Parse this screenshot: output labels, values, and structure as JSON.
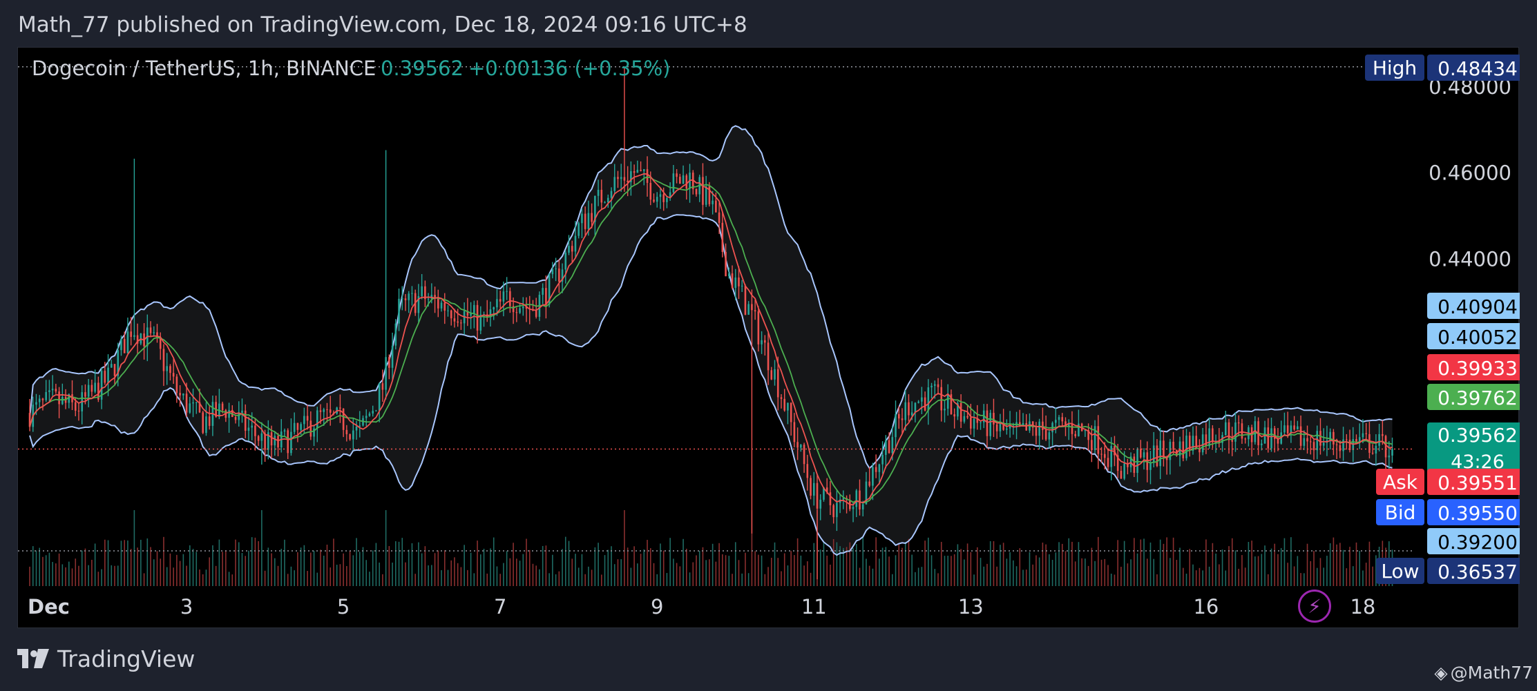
{
  "header": {
    "publish_text": "Math_77 published on TradingView.com, Dec 18, 2024 09:16 UTC+8"
  },
  "footer": {
    "brand_name": "TradingView",
    "handle": "@Math77"
  },
  "legend": {
    "symbol": "Dogecoin / TetherUS, 1h, BINANCE",
    "last": "0.39562",
    "change": "+0.00136 (+0.35%)"
  },
  "colors": {
    "up": "#26a69a",
    "down": "#ef5350",
    "bollinger": "#a9c7ff",
    "ma_fast": "#ef5350",
    "ma_slow": "#4caf50",
    "accent": "#2962ff"
  },
  "price_labels": [
    {
      "id": "high",
      "tag": "High",
      "value": "0.48434",
      "tag_bg": "#1c3478",
      "bg": "#1c3478",
      "fg": "#ffffff"
    },
    {
      "id": "bb_upper",
      "tag": "",
      "value": "0.40904",
      "bg": "#90caf9",
      "fg": "#000000"
    },
    {
      "id": "bb_mid",
      "tag": "",
      "value": "0.40052",
      "bg": "#90caf9",
      "fg": "#000000"
    },
    {
      "id": "ma_red",
      "tag": "",
      "value": "0.39933",
      "bg": "#f23645",
      "fg": "#ffffff"
    },
    {
      "id": "ma_green",
      "tag": "",
      "value": "0.39762",
      "bg": "#4caf50",
      "fg": "#ffffff"
    },
    {
      "id": "last",
      "tag": "",
      "value": "0.39562",
      "sub": "43:26",
      "bg": "#089981",
      "fg": "#ffffff"
    },
    {
      "id": "ask",
      "tag": "Ask",
      "value": "0.39551",
      "tag_bg": "#f23645",
      "bg": "#f23645",
      "fg": "#ffffff"
    },
    {
      "id": "bid",
      "tag": "Bid",
      "value": "0.39550",
      "tag_bg": "#2962ff",
      "bg": "#2962ff",
      "fg": "#ffffff"
    },
    {
      "id": "bb_lower",
      "tag": "",
      "value": "0.39200",
      "bg": "#90caf9",
      "fg": "#000000"
    },
    {
      "id": "low",
      "tag": "Low",
      "value": "0.36537",
      "tag_bg": "#1c3478",
      "bg": "#1c3478",
      "fg": "#ffffff"
    }
  ],
  "chart_data": {
    "type": "candlestick",
    "title": "Dogecoin / TetherUS, 1h, BINANCE",
    "y_ticks": [
      "0.48000",
      "0.46000",
      "0.44000"
    ],
    "ylim": [
      0.3654,
      0.4843
    ],
    "x_ticks": [
      {
        "label": "Dec",
        "day": 1
      },
      {
        "label": "3",
        "day": 3
      },
      {
        "label": "5",
        "day": 5
      },
      {
        "label": "7",
        "day": 7
      },
      {
        "label": "9",
        "day": 9
      },
      {
        "label": "11",
        "day": 11
      },
      {
        "label": "13",
        "day": 13
      },
      {
        "label": "16",
        "day": 16
      },
      {
        "label": "18",
        "day": 18
      }
    ],
    "xlim_days": [
      0.85,
      20.0
    ],
    "last_day": 18.4,
    "high": 0.48434,
    "low": 0.36537,
    "close_path": [
      [
        1.0,
        0.404
      ],
      [
        1.3,
        0.407
      ],
      [
        1.6,
        0.405
      ],
      [
        2.0,
        0.412
      ],
      [
        2.3,
        0.424
      ],
      [
        2.6,
        0.42
      ],
      [
        2.9,
        0.408
      ],
      [
        3.2,
        0.402
      ],
      [
        3.5,
        0.405
      ],
      [
        3.8,
        0.4
      ],
      [
        4.1,
        0.396
      ],
      [
        4.4,
        0.399
      ],
      [
        4.7,
        0.403
      ],
      [
        5.0,
        0.402
      ],
      [
        5.2,
        0.399
      ],
      [
        5.5,
        0.41
      ],
      [
        5.7,
        0.428
      ],
      [
        6.0,
        0.431
      ],
      [
        6.4,
        0.428
      ],
      [
        6.8,
        0.425
      ],
      [
        7.1,
        0.431
      ],
      [
        7.4,
        0.428
      ],
      [
        7.7,
        0.435
      ],
      [
        8.0,
        0.447
      ],
      [
        8.4,
        0.457
      ],
      [
        8.7,
        0.46
      ],
      [
        9.0,
        0.455
      ],
      [
        9.4,
        0.459
      ],
      [
        9.7,
        0.452
      ],
      [
        9.9,
        0.437
      ],
      [
        10.2,
        0.427
      ],
      [
        10.5,
        0.413
      ],
      [
        10.8,
        0.396
      ],
      [
        11.0,
        0.385
      ],
      [
        11.3,
        0.382
      ],
      [
        11.6,
        0.385
      ],
      [
        11.9,
        0.396
      ],
      [
        12.2,
        0.406
      ],
      [
        12.5,
        0.408
      ],
      [
        12.8,
        0.404
      ],
      [
        13.1,
        0.402
      ],
      [
        13.5,
        0.399
      ],
      [
        13.9,
        0.4
      ],
      [
        14.3,
        0.401
      ],
      [
        14.6,
        0.398
      ],
      [
        14.9,
        0.391
      ],
      [
        15.2,
        0.393
      ],
      [
        15.5,
        0.395
      ],
      [
        15.8,
        0.397
      ],
      [
        16.2,
        0.4
      ],
      [
        16.6,
        0.399
      ],
      [
        17.0,
        0.398
      ],
      [
        17.4,
        0.398
      ],
      [
        17.8,
        0.397
      ],
      [
        18.1,
        0.397
      ],
      [
        18.4,
        0.3956
      ]
    ]
  }
}
